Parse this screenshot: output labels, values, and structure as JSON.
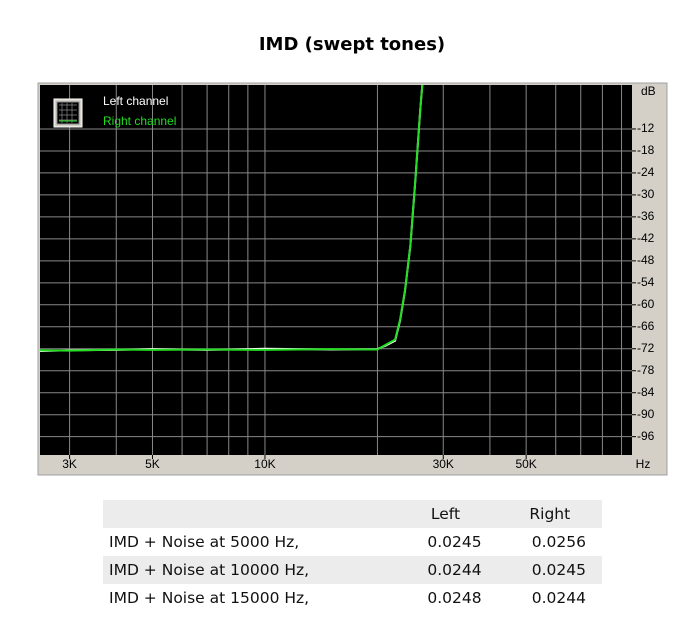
{
  "chart_data": {
    "type": "line",
    "title": "IMD (swept tones)",
    "x_unit": "Hz",
    "y_unit": "dB",
    "xlog": true,
    "xlim": [
      2500,
      96000
    ],
    "xticks": [
      {
        "value": 3000,
        "label": "3K"
      },
      {
        "value": 5000,
        "label": "5K"
      },
      {
        "value": 10000,
        "label": "10K"
      },
      {
        "value": 30000,
        "label": "30K"
      },
      {
        "value": 50000,
        "label": "50K"
      }
    ],
    "xminor": [
      4000,
      6000,
      7000,
      8000,
      9000,
      20000,
      40000,
      60000,
      70000,
      80000,
      90000
    ],
    "ylim": [
      -101,
      0
    ],
    "yticks": [
      -12,
      -18,
      -24,
      -30,
      -36,
      -42,
      -48,
      -54,
      -60,
      -66,
      -72,
      -78,
      -84,
      -90,
      -96
    ],
    "grid": true,
    "legend": "top-left",
    "x": [
      2500,
      3000,
      4000,
      5000,
      7000,
      10000,
      15000,
      20000,
      20970,
      22300,
      23000,
      23700,
      24500,
      25250,
      26030,
      26370
    ],
    "series": [
      {
        "name": "Left channel",
        "color": "#ffffff",
        "values": [
          -72.6,
          -72.4,
          -72.3,
          -72.1,
          -72.3,
          -72.0,
          -72.2,
          -72.1,
          -71.2,
          -69.8,
          -64.3,
          -56.2,
          -43.8,
          -26.2,
          -7.0,
          0
        ]
      },
      {
        "name": "Right channel",
        "color": "#22dd22",
        "values": [
          -72.4,
          -72.5,
          -72.2,
          -72.3,
          -72.2,
          -72.3,
          -72.1,
          -72.2,
          -71.0,
          -69.5,
          -64.0,
          -56.0,
          -43.6,
          -26.0,
          -6.8,
          0
        ]
      }
    ]
  },
  "table": {
    "columns": [
      "Left",
      "Right"
    ],
    "rows": [
      [
        "IMD + Noise at 5000 Hz,",
        "0.0245",
        "0.0256"
      ],
      [
        "IMD + Noise at 10000 Hz,",
        "0.0244",
        "0.0245"
      ],
      [
        "IMD + Noise at 15000 Hz,",
        "0.0248",
        "0.0244"
      ]
    ]
  }
}
